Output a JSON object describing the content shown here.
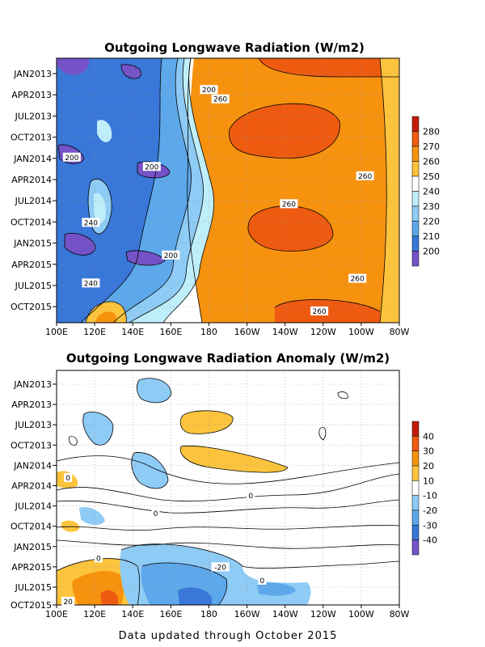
{
  "footer": "Data updated through October 2015",
  "chart_data": [
    {
      "type": "heatmap",
      "title": "Outgoing Longwave Radiation (W/m2)",
      "y_ticks": [
        "JAN2013",
        "APR2013",
        "JUL2013",
        "OCT2013",
        "JAN2014",
        "APR2014",
        "JUL2014",
        "OCT2014",
        "JAN2015",
        "APR2015",
        "JUL2015",
        "OCT2015"
      ],
      "x_ticks": [
        "100E",
        "120E",
        "140E",
        "160E",
        "180",
        "160W",
        "140W",
        "120W",
        "100W",
        "80W"
      ],
      "colorbar": {
        "labels": [
          "280",
          "270",
          "260",
          "250",
          "240",
          "230",
          "220",
          "210",
          "200"
        ],
        "colors": [
          "#c41a0b",
          "#ee5a10",
          "#f7920f",
          "#fcc43c",
          "#ffffff",
          "#bfeefb",
          "#8ecbf5",
          "#5da8ea",
          "#3977d8",
          "#7552c7"
        ]
      },
      "contour_labels": [
        {
          "text": "200",
          "lon": 180.0,
          "t": 0.07
        },
        {
          "text": "260",
          "lon": 186.0,
          "t": 0.11
        },
        {
          "text": "200",
          "lon": 108.0,
          "t": 0.36
        },
        {
          "text": "200",
          "lon": 150.0,
          "t": 0.4
        },
        {
          "text": "260",
          "lon": 262.0,
          "t": 0.44
        },
        {
          "text": "260",
          "lon": 222.0,
          "t": 0.56
        },
        {
          "text": "240",
          "lon": 118.0,
          "t": 0.64
        },
        {
          "text": "200",
          "lon": 160.0,
          "t": 0.78
        },
        {
          "text": "260",
          "lon": 258.0,
          "t": 0.88
        },
        {
          "text": "240",
          "lon": 118.0,
          "t": 0.9
        },
        {
          "text": "260",
          "lon": 238.0,
          "t": 1.02
        }
      ]
    },
    {
      "type": "heatmap",
      "title": "Outgoing Longwave Radiation Anomaly (W/m2)",
      "y_ticks": [
        "JAN2013",
        "APR2013",
        "JUL2013",
        "OCT2013",
        "JAN2014",
        "APR2014",
        "JUL2014",
        "OCT2014",
        "JAN2015",
        "APR2015",
        "JUL2015",
        "OCT2015"
      ],
      "x_ticks": [
        "100E",
        "120E",
        "140E",
        "160E",
        "180",
        "160W",
        "140W",
        "120W",
        "100W",
        "80W"
      ],
      "colorbar": {
        "labels": [
          "40",
          "30",
          "20",
          "10",
          "-10",
          "-20",
          "-30",
          "-40"
        ],
        "colors": [
          "#c41a0b",
          "#ee5a10",
          "#f7920f",
          "#fcc43c",
          "#ffffff",
          "#8ecbf5",
          "#5da8ea",
          "#3977d8",
          "#7552c7"
        ]
      },
      "contour_labels": [
        {
          "text": "0",
          "lon": 106.0,
          "t": 0.42
        },
        {
          "text": "0",
          "lon": 202.0,
          "t": 0.5
        },
        {
          "text": "0",
          "lon": 152.0,
          "t": 0.58
        },
        {
          "text": "0",
          "lon": 122.0,
          "t": 0.78
        },
        {
          "text": "-20",
          "lon": 186.0,
          "t": 0.82
        },
        {
          "text": "0",
          "lon": 208.0,
          "t": 0.88
        },
        {
          "text": "20",
          "lon": 106.0,
          "t": 0.98
        }
      ]
    }
  ]
}
